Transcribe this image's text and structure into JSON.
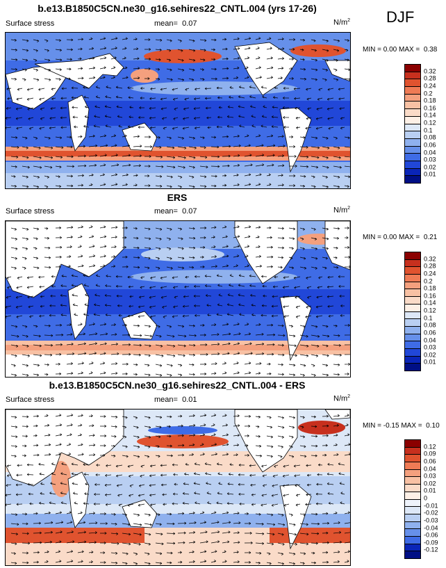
{
  "season": "DJF",
  "panels": [
    {
      "title": "b.e13.B1850C5CN.ne30_g16.sehires22_CNTL.004 (yrs 17-26)",
      "variable": "Surface stress",
      "mean_label": "mean=",
      "mean": "0.07",
      "units_base": "N/m",
      "units_exp": "2",
      "min_label": "MIN =",
      "min": "0.00",
      "max_label": "MAX =",
      "max": "0.38",
      "colorbar_labels": [
        "0.32",
        "0.28",
        "0.24",
        "0.2",
        "0.18",
        "0.16",
        "0.14",
        "0.12",
        "0.1",
        "0.08",
        "0.06",
        "0.04",
        "0.03",
        "0.02",
        "0.01"
      ]
    },
    {
      "title": "ERS",
      "variable": "Surface stress",
      "mean_label": "mean=",
      "mean": "0.07",
      "units_base": "N/m",
      "units_exp": "2",
      "min_label": "MIN =",
      "min": "0.00",
      "max_label": "MAX =",
      "max": "0.21",
      "colorbar_labels": [
        "0.32",
        "0.28",
        "0.24",
        "0.2",
        "0.18",
        "0.16",
        "0.14",
        "0.12",
        "0.1",
        "0.08",
        "0.06",
        "0.04",
        "0.03",
        "0.02",
        "0.01"
      ]
    },
    {
      "title": "b.e13.B1850C5CN.ne30_g16.sehires22_CNTL.004 - ERS",
      "variable": "Surface stress",
      "mean_label": "mean=",
      "mean": "0.01",
      "units_base": "N/m",
      "units_exp": "2",
      "min_label": "MIN =",
      "min": "-0.15",
      "max_label": "MAX =",
      "max": "0.10",
      "colorbar_labels": [
        "0.12",
        "0.09",
        "0.06",
        "0.04",
        "0.03",
        "0.02",
        "0.01",
        "0",
        "-0.01",
        "-0.02",
        "-0.03",
        "-0.04",
        "-0.06",
        "-0.09",
        "-0.12"
      ]
    }
  ],
  "colors": {
    "abs_scale": [
      "#8b0000",
      "#c7301e",
      "#e0532f",
      "#ef7b55",
      "#f4a07e",
      "#f8c1a4",
      "#fadbc8",
      "#fdf0e6",
      "#dde8f7",
      "#b9cff2",
      "#8fb1ee",
      "#6690ea",
      "#3f6ce6",
      "#2147d8",
      "#0a25b8",
      "#000f85"
    ],
    "diff_scale": [
      "#8b0000",
      "#c7301e",
      "#e0532f",
      "#ef7b55",
      "#f4a07e",
      "#f8c1a4",
      "#fadbc8",
      "#fdf0e6",
      "#eef3fb",
      "#dde8f7",
      "#b9cff2",
      "#8fb1ee",
      "#6690ea",
      "#3f6ce6",
      "#0a25b8",
      "#000f85"
    ],
    "land": "#ffffff",
    "coast": "#000000"
  }
}
